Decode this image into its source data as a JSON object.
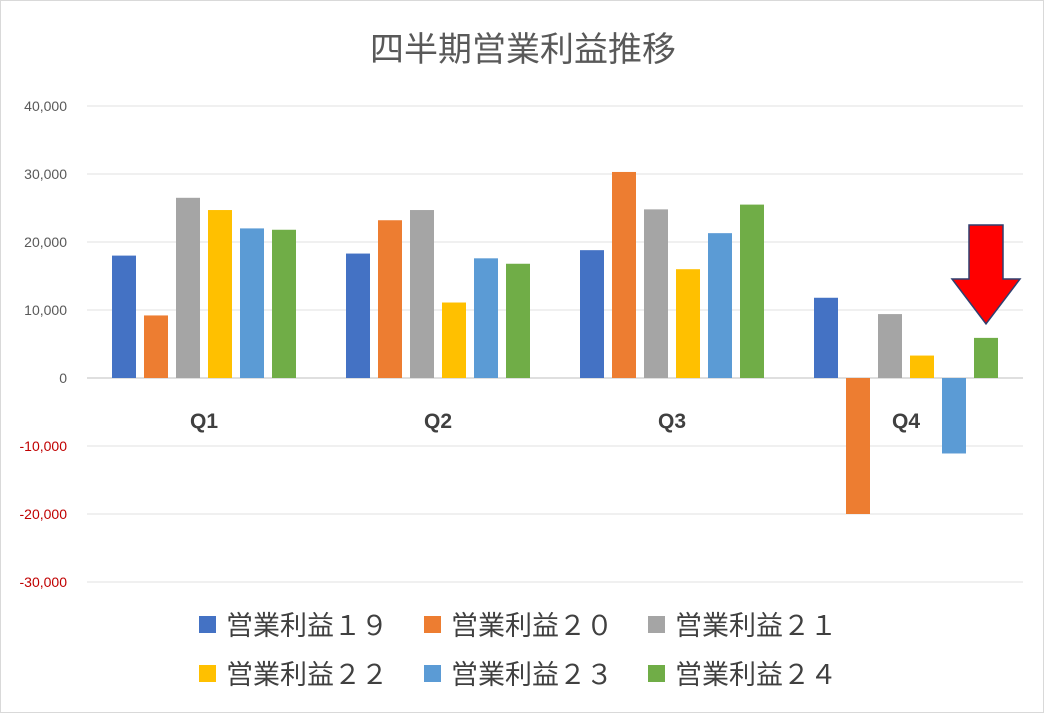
{
  "chart_data": {
    "type": "bar",
    "title": "四半期営業利益推移",
    "categories": [
      "Q1",
      "Q2",
      "Q3",
      "Q4"
    ],
    "ylim": [
      -30000,
      40000
    ],
    "yticks": [
      40000,
      30000,
      20000,
      10000,
      0,
      -10000,
      -20000,
      -30000
    ],
    "ytick_labels": [
      "40,000",
      "30,000",
      "20,000",
      "10,000",
      "0",
      "-10,000",
      "-20,000",
      "-30,000"
    ],
    "negative_tick_color": "#c00000",
    "positive_tick_color": "#595959",
    "grid": true,
    "legend_position": "bottom",
    "series": [
      {
        "name": "営業利益１９",
        "color": "#4472c4",
        "values": [
          18000,
          18300,
          18800,
          11800
        ]
      },
      {
        "name": "営業利益２０",
        "color": "#ed7d31",
        "values": [
          9200,
          23200,
          30300,
          -20000
        ]
      },
      {
        "name": "営業利益２１",
        "color": "#a5a5a5",
        "values": [
          26500,
          24700,
          24800,
          9400
        ]
      },
      {
        "name": "営業利益２２",
        "color": "#ffc000",
        "values": [
          24700,
          11100,
          16000,
          3300
        ]
      },
      {
        "name": "営業利益２３",
        "color": "#5b9bd5",
        "values": [
          22000,
          17600,
          21300,
          -11100
        ]
      },
      {
        "name": "営業利益２４",
        "color": "#70ad47",
        "values": [
          21800,
          16800,
          25500,
          5900
        ]
      }
    ],
    "annotation": {
      "shape": "down-arrow",
      "color": "#ff0000",
      "target": "営業利益２４ Q4"
    }
  }
}
